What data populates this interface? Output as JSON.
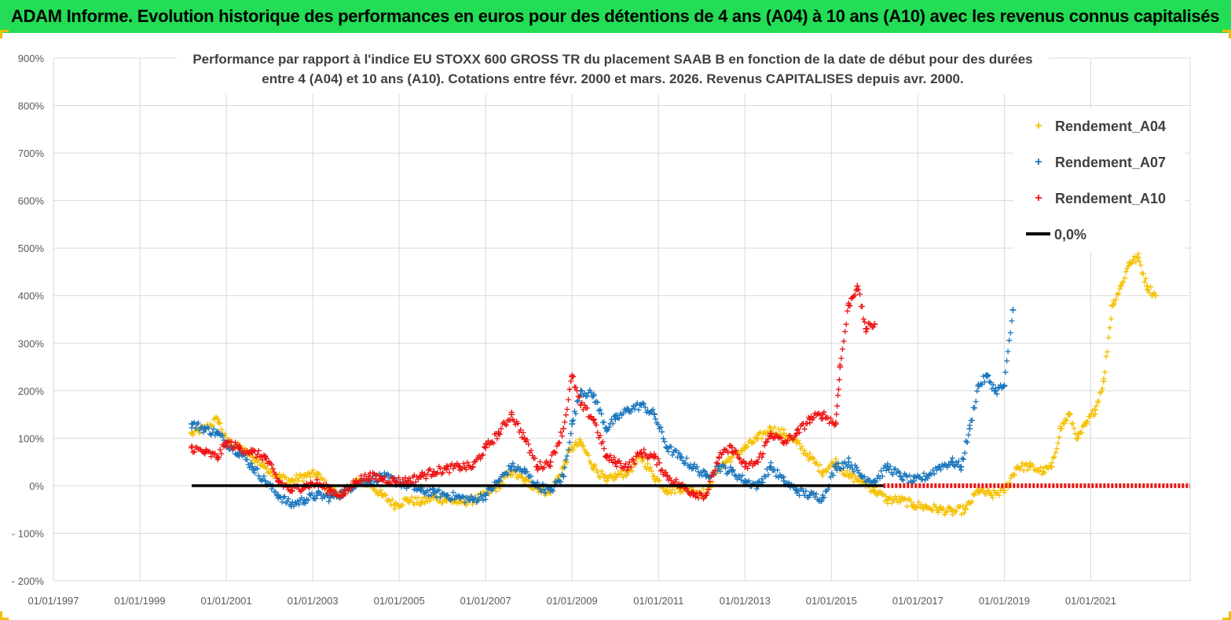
{
  "banner": {
    "title": "ADAM Informe. Evolution historique des performances en euros pour des détentions de 4 ans (A04) à 10 ans (A10) avec les revenus connus capitalisés"
  },
  "colors": {
    "banner": "#22dd55",
    "a04": "#f5c000",
    "a07": "#1a75bc",
    "a10": "#ee1111",
    "zero": "#000000"
  },
  "chart_data": {
    "type": "scatter",
    "title_lines": [
      "Performance par rapport à l'indice EU STOXX 600 GROSS TR  du placement SAAB B en fonction de la date de début pour des durées",
      "entre 4 (A04) et 10 ans (A10). Cotations entre févr. 2000 et mars. 2026. Revenus CAPITALISES depuis avr. 2000."
    ],
    "xlabel": "",
    "ylabel": "",
    "x_range": [
      1997.0,
      2023.3
    ],
    "y_range": [
      -200,
      900
    ],
    "y_ticks": [
      -200,
      -100,
      0,
      100,
      200,
      300,
      400,
      500,
      600,
      700,
      800,
      900
    ],
    "y_tick_labels": [
      "- 200%",
      "- 100%",
      "0%",
      "100%",
      "200%",
      "300%",
      "400%",
      "500%",
      "600%",
      "700%",
      "800%",
      "900%"
    ],
    "x_ticks": [
      1997,
      1999,
      2001,
      2003,
      2005,
      2007,
      2009,
      2011,
      2013,
      2015,
      2017,
      2019,
      2021
    ],
    "x_tick_labels": [
      "01/01/1997",
      "01/01/1999",
      "01/01/2001",
      "01/01/2003",
      "01/01/2005",
      "01/01/2007",
      "01/01/2009",
      "01/01/2011",
      "01/01/2013",
      "01/01/2015",
      "01/01/2017",
      "01/01/2019",
      "01/01/2021"
    ],
    "legend_position": "top-right",
    "legend": [
      {
        "key": "a04",
        "label": "Rendement_A04",
        "marker": "+"
      },
      {
        "key": "a07",
        "label": "Rendement_A07",
        "marker": "+"
      },
      {
        "key": "a10",
        "label": "Rendement_A10",
        "marker": "+"
      },
      {
        "key": "zero",
        "label": "0,0%",
        "marker": "line"
      }
    ],
    "series": [
      {
        "name": "Rendement_A04",
        "key": "a04",
        "x": [
          2000.2,
          2000.5,
          2000.8,
          2001.0,
          2001.3,
          2001.6,
          2001.9,
          2002.2,
          2002.5,
          2002.8,
          2003.1,
          2003.4,
          2003.7,
          2004.0,
          2004.3,
          2004.6,
          2004.9,
          2005.2,
          2005.5,
          2005.8,
          2006.1,
          2006.4,
          2006.7,
          2007.0,
          2007.3,
          2007.6,
          2007.9,
          2008.2,
          2008.5,
          2008.8,
          2009.0,
          2009.2,
          2009.5,
          2009.8,
          2010.0,
          2010.3,
          2010.6,
          2010.9,
          2011.2,
          2011.5,
          2011.8,
          2012.1,
          2012.4,
          2012.7,
          2013.0,
          2013.3,
          2013.6,
          2013.9,
          2014.2,
          2014.5,
          2014.8,
          2015.1,
          2015.4,
          2015.7,
          2016.0,
          2016.3,
          2016.6,
          2016.9,
          2017.2,
          2017.5,
          2017.8,
          2018.1,
          2018.4,
          2018.7,
          2019.0,
          2019.3,
          2019.6,
          2019.9,
          2020.1,
          2020.3,
          2020.5,
          2020.7,
          2020.9,
          2021.1,
          2021.3,
          2021.5,
          2021.7,
          2021.9,
          2022.1,
          2022.3,
          2022.5
        ],
        "values": [
          110,
          120,
          140,
          95,
          80,
          60,
          40,
          20,
          10,
          20,
          25,
          -10,
          -20,
          10,
          5,
          -20,
          -40,
          -30,
          -35,
          -25,
          -30,
          -35,
          -30,
          -20,
          0,
          30,
          10,
          -5,
          -15,
          40,
          80,
          90,
          40,
          10,
          20,
          30,
          60,
          20,
          -10,
          -5,
          -10,
          -15,
          40,
          60,
          80,
          100,
          120,
          110,
          90,
          60,
          30,
          50,
          20,
          10,
          -10,
          -30,
          -30,
          -40,
          -45,
          -50,
          -55,
          -50,
          -10,
          -20,
          -10,
          40,
          40,
          30,
          40,
          120,
          150,
          100,
          130,
          160,
          220,
          380,
          420,
          470,
          480,
          420,
          400
        ]
      },
      {
        "name": "Rendement_A07",
        "key": "a07",
        "x": [
          2000.2,
          2000.5,
          2000.8,
          2001.0,
          2001.3,
          2001.6,
          2001.9,
          2002.2,
          2002.5,
          2002.8,
          2003.1,
          2003.4,
          2003.7,
          2004.0,
          2004.3,
          2004.6,
          2004.9,
          2005.2,
          2005.5,
          2005.8,
          2006.1,
          2006.4,
          2006.7,
          2007.0,
          2007.3,
          2007.6,
          2007.9,
          2008.2,
          2008.5,
          2008.8,
          2009.0,
          2009.2,
          2009.5,
          2009.8,
          2010.0,
          2010.3,
          2010.6,
          2010.9,
          2011.2,
          2011.5,
          2011.8,
          2012.1,
          2012.4,
          2012.7,
          2013.0,
          2013.3,
          2013.6,
          2013.9,
          2014.2,
          2014.5,
          2014.8,
          2015.1,
          2015.4,
          2015.7,
          2016.0,
          2016.3,
          2016.6,
          2016.9,
          2017.2,
          2017.5,
          2017.8,
          2018.0,
          2018.2,
          2018.4,
          2018.6,
          2018.8,
          2019.0,
          2019.2
        ],
        "values": [
          130,
          120,
          110,
          90,
          70,
          40,
          10,
          -20,
          -40,
          -30,
          -20,
          -25,
          -15,
          5,
          10,
          20,
          10,
          0,
          -10,
          -15,
          -20,
          -25,
          -30,
          -20,
          10,
          40,
          30,
          0,
          -10,
          20,
          130,
          200,
          190,
          120,
          140,
          160,
          170,
          150,
          80,
          60,
          40,
          20,
          40,
          30,
          10,
          0,
          40,
          10,
          -10,
          -20,
          -25,
          40,
          50,
          20,
          10,
          40,
          20,
          10,
          20,
          40,
          50,
          40,
          120,
          210,
          230,
          200,
          210,
          370
        ]
      },
      {
        "name": "Rendement_A10",
        "key": "a10",
        "x": [
          2000.2,
          2000.5,
          2000.8,
          2001.0,
          2001.3,
          2001.6,
          2001.9,
          2002.2,
          2002.5,
          2002.8,
          2003.1,
          2003.4,
          2003.7,
          2004.0,
          2004.3,
          2004.6,
          2004.9,
          2005.2,
          2005.5,
          2005.8,
          2006.1,
          2006.4,
          2006.7,
          2007.0,
          2007.3,
          2007.6,
          2007.9,
          2008.2,
          2008.5,
          2008.8,
          2009.0,
          2009.2,
          2009.5,
          2009.8,
          2010.0,
          2010.3,
          2010.6,
          2010.9,
          2011.2,
          2011.5,
          2011.8,
          2012.1,
          2012.4,
          2012.7,
          2013.0,
          2013.3,
          2013.6,
          2013.9,
          2014.2,
          2014.5,
          2014.8,
          2015.1,
          2015.2,
          2015.4,
          2015.6,
          2015.8,
          2016.0
        ],
        "values": [
          80,
          70,
          60,
          90,
          80,
          70,
          60,
          10,
          -10,
          0,
          5,
          -10,
          -20,
          10,
          20,
          15,
          10,
          10,
          20,
          30,
          35,
          40,
          40,
          80,
          110,
          150,
          100,
          40,
          50,
          120,
          230,
          170,
          140,
          60,
          50,
          40,
          70,
          60,
          20,
          0,
          -15,
          -20,
          60,
          80,
          40,
          50,
          110,
          90,
          110,
          140,
          150,
          130,
          250,
          380,
          420,
          330,
          340
        ]
      },
      {
        "name": "Rendement_A10_zero",
        "key": "a10",
        "x": [
          2016.2,
          2023.3
        ],
        "values": [
          0,
          0
        ]
      },
      {
        "name": "0,0%",
        "key": "zero",
        "x": [
          2000.2,
          2016.2
        ],
        "values": [
          0,
          0
        ]
      }
    ]
  }
}
